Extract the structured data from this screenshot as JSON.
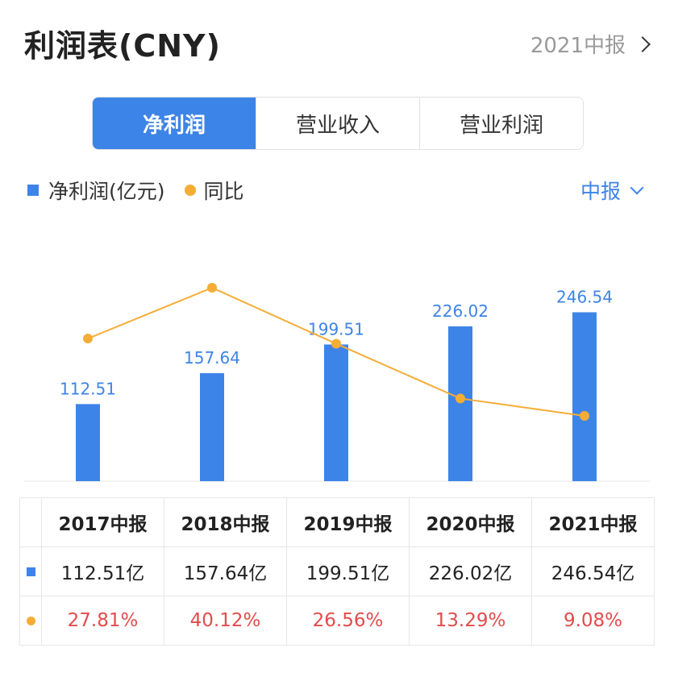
{
  "header": {
    "title": "利润表(CNY)",
    "period_link": "2021中报"
  },
  "tabs": [
    {
      "label": "净利润",
      "active": true
    },
    {
      "label": "营业收入",
      "active": false
    },
    {
      "label": "营业利润",
      "active": false
    }
  ],
  "legend": {
    "bar_label": "净利润(亿元)",
    "line_label": "同比"
  },
  "period_select": "中报",
  "colors": {
    "bar": "#3d84e8",
    "line": "#f5ad35",
    "negative_text": "#e24c4c"
  },
  "chart_data": {
    "type": "bar",
    "categories": [
      "2017中报",
      "2018中报",
      "2019中报",
      "2020中报",
      "2021中报"
    ],
    "series": [
      {
        "name": "净利润(亿元)",
        "type": "bar",
        "values": [
          112.51,
          157.64,
          199.51,
          226.02,
          246.54
        ],
        "labels": [
          "112.51",
          "157.64",
          "199.51",
          "226.02",
          "246.54"
        ]
      },
      {
        "name": "同比",
        "type": "line",
        "values": [
          27.81,
          40.12,
          26.56,
          13.29,
          9.08
        ]
      }
    ]
  },
  "table": {
    "headers": [
      "2017中报",
      "2018中报",
      "2019中报",
      "2020中报",
      "2021中报"
    ],
    "net_profit": [
      "112.51亿",
      "157.64亿",
      "199.51亿",
      "226.02亿",
      "246.54亿"
    ],
    "yoy": [
      "27.81%",
      "40.12%",
      "26.56%",
      "13.29%",
      "9.08%"
    ]
  }
}
